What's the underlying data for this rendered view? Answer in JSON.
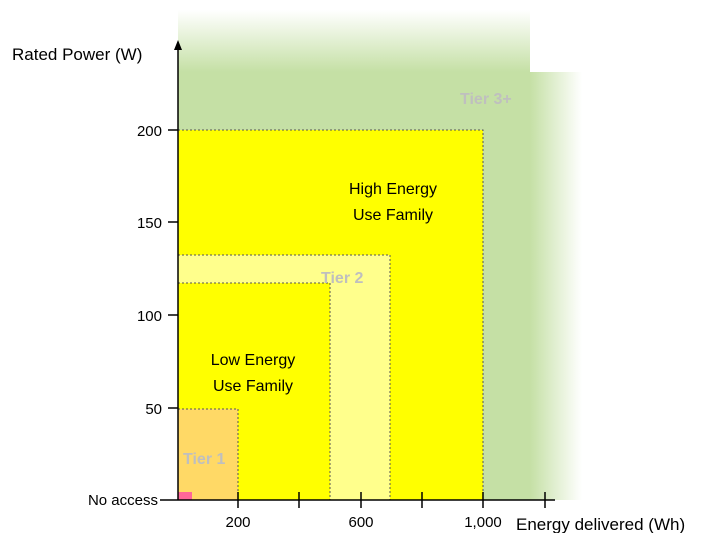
{
  "axes": {
    "y_label": "Rated Power (W)",
    "x_label": "Energy delivered (Wh)",
    "y_ticks": [
      "200",
      "150",
      "100",
      "50"
    ],
    "x_ticks": [
      "200",
      "600",
      "1,000"
    ],
    "no_access": "No access"
  },
  "regions": {
    "tier3": "Tier 3+",
    "tier2": "Tier 2",
    "tier1": "Tier 1",
    "high_line1": "High Energy",
    "high_line2": "Use Family",
    "low_line1": "Low Energy",
    "low_line2": "Use Family"
  },
  "colors": {
    "tier3_green": "#c5e0a5",
    "yellow": "#ffff00",
    "tier2_fill": "#ffff8c",
    "tier1_fill": "#ffd966",
    "no_access_mark": "#ff6699",
    "tier_text": "#bfbfbf"
  }
}
